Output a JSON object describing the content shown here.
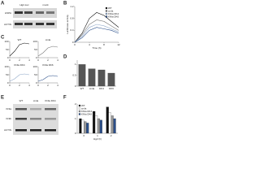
{
  "panels": {
    "letters": [
      "A",
      "B",
      "C",
      "D",
      "E",
      "F"
    ]
  },
  "blot_a": {
    "columns": [
      "Hg2-Luc",
      "mock"
    ],
    "rows": [
      "HSPA",
      "ACTIN"
    ]
  },
  "blot_e": {
    "columns": [
      "WT",
      "cmla",
      "KNla DK4"
    ],
    "rows": [
      "KNla",
      "KNlb",
      "ACTIN"
    ]
  },
  "chart_data": [
    {
      "type": "line",
      "ylabel": "Luciferase activity",
      "xlabel": "Time (h)",
      "x": [
        0,
        2,
        4,
        6,
        8,
        10,
        12
      ],
      "xlim": [
        0,
        12
      ],
      "xticks": [
        0,
        4,
        8,
        12
      ],
      "ylim": [
        0,
        1.2
      ],
      "yticks": [
        0,
        0.4,
        0.8,
        1.2
      ],
      "legend": "top-right",
      "series": [
        {
          "name": "WT",
          "color": "#111111",
          "values": [
            0,
            0.3,
            0.8,
            1.0,
            0.9,
            0.7,
            0.5
          ]
        },
        {
          "name": "cmla",
          "color": "#777777",
          "values": [
            0,
            0.25,
            0.6,
            0.75,
            0.7,
            0.55,
            0.4
          ]
        },
        {
          "name": "KNla DK4",
          "color": "#8fa8c8",
          "values": [
            0,
            0.2,
            0.5,
            0.6,
            0.55,
            0.45,
            0.35
          ]
        },
        {
          "name": "KNla DK6",
          "color": "#2b4f8a",
          "values": [
            0,
            0.15,
            0.4,
            0.5,
            0.45,
            0.4,
            0.3
          ]
        }
      ]
    },
    {
      "type": "line",
      "title": "WT",
      "x": [
        0,
        1,
        2,
        3,
        4
      ],
      "xlim": [
        0,
        4
      ],
      "xticks": [
        0,
        2,
        4
      ],
      "ylim": [
        0,
        100
      ],
      "yticks": [
        0,
        50,
        100
      ],
      "series": [
        {
          "color": "#111111",
          "values": [
            10,
            40,
            80,
            90,
            85
          ]
        }
      ]
    },
    {
      "type": "line",
      "title": "cmla",
      "x": [
        0,
        1,
        2,
        3,
        4
      ],
      "xlim": [
        0,
        4
      ],
      "xticks": [
        0,
        2,
        4
      ],
      "ylim": [
        0,
        100
      ],
      "yticks": [
        0,
        50,
        100
      ],
      "series": [
        {
          "color": "#777777",
          "values": [
            10,
            30,
            60,
            70,
            65
          ]
        }
      ]
    },
    {
      "type": "line",
      "title": "KNla DK4",
      "x": [
        0,
        1,
        2,
        3,
        4
      ],
      "xlim": [
        0,
        4
      ],
      "xticks": [
        0,
        2,
        4
      ],
      "ylim": [
        0,
        100
      ],
      "yticks": [
        0,
        50,
        100
      ],
      "series": [
        {
          "color": "#8fa8c8",
          "values": [
            10,
            25,
            50,
            55,
            50
          ]
        }
      ]
    },
    {
      "type": "line",
      "title": "KNla DK6",
      "x": [
        0,
        1,
        2,
        3,
        4
      ],
      "xlim": [
        0,
        4
      ],
      "xticks": [
        0,
        2,
        4
      ],
      "ylim": [
        0,
        100
      ],
      "yticks": [
        0,
        50,
        100
      ],
      "series": [
        {
          "color": "#2b4f8a",
          "values": [
            10,
            20,
            40,
            45,
            40
          ]
        }
      ]
    },
    {
      "type": "bar",
      "categories": [
        "WT",
        "cmla",
        "DK4",
        "DK6"
      ],
      "ylim": [
        0,
        1.2
      ],
      "yticks": [
        0,
        0.5,
        1
      ],
      "series": [
        {
          "color": "#555555",
          "values": [
            1.0,
            0.8,
            0.75,
            0.6
          ]
        }
      ]
    },
    {
      "type": "bar",
      "xlabel": "Hg2 (h)",
      "categories": [
        "0",
        "1",
        "2"
      ],
      "ylim": [
        0,
        2
      ],
      "yticks": [
        0,
        1,
        2
      ],
      "legend": "top-left",
      "series": [
        {
          "name": "WT",
          "color": "#111111",
          "values": [
            1.0,
            1.5,
            1.8
          ]
        },
        {
          "name": "cmla",
          "color": "#ffffff",
          "values": [
            0.9,
            1.2,
            1.4
          ]
        },
        {
          "name": "KNla DK4",
          "color": "#999999",
          "values": [
            0.8,
            1.0,
            1.2
          ]
        },
        {
          "name": "KNla DK6",
          "color": "#2b4f8a",
          "values": [
            0.7,
            0.9,
            1.0
          ]
        }
      ]
    }
  ]
}
